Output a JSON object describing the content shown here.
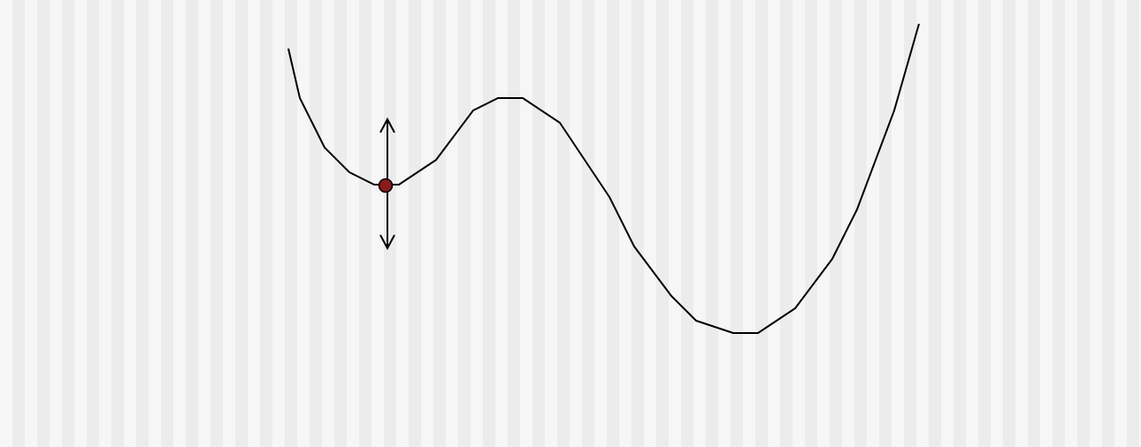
{
  "diagram": {
    "description_kind": "potential-energy-landscape",
    "curve": {
      "stroke_color": "#000000",
      "minima_count": 2,
      "maxima_count": 1
    },
    "ball": {
      "fill_color": "#8b1a1a",
      "stroke_color": "#000000",
      "location": "local-minimum"
    },
    "arrow": {
      "orientation": "vertical",
      "heads": "both",
      "stroke_color": "#000000"
    },
    "background": {
      "stripe_light": "#f6f6f6",
      "stripe_dark": "#ececec"
    }
  }
}
